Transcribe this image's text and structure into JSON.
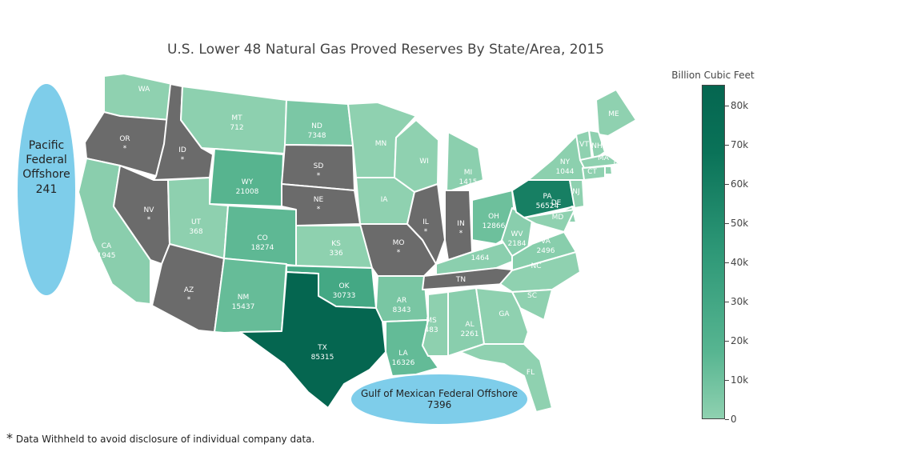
{
  "title": "U.S. Lower 48 Natural Gas Proved Reserves By State/Area, 2015",
  "colorbar": {
    "title": "Billion Cubic Feet",
    "ticks": [
      "0",
      "10k",
      "20k",
      "30k",
      "40k",
      "50k",
      "60k",
      "70k",
      "80k"
    ],
    "range": [
      0,
      85315
    ],
    "colors": [
      "#8fd1b0",
      "#56b48f",
      "#2e9877",
      "#0a7258",
      "#056650"
    ]
  },
  "withheld_color": "#6b6b6b",
  "states": [
    {
      "code": "WA",
      "value": ""
    },
    {
      "code": "OR",
      "value": "*"
    },
    {
      "code": "CA",
      "value": "1945"
    },
    {
      "code": "ID",
      "value": "*"
    },
    {
      "code": "NV",
      "value": "*"
    },
    {
      "code": "MT",
      "value": "712"
    },
    {
      "code": "WY",
      "value": "21008"
    },
    {
      "code": "UT",
      "value": "368"
    },
    {
      "code": "AZ",
      "value": "*"
    },
    {
      "code": "CO",
      "value": "18274"
    },
    {
      "code": "NM",
      "value": "15437"
    },
    {
      "code": "ND",
      "value": "7348"
    },
    {
      "code": "SD",
      "value": "*"
    },
    {
      "code": "NE",
      "value": "*"
    },
    {
      "code": "KS",
      "value": "336"
    },
    {
      "code": "OK",
      "value": "30733"
    },
    {
      "code": "TX",
      "value": "85315"
    },
    {
      "code": "MN",
      "value": ""
    },
    {
      "code": "IA",
      "value": ""
    },
    {
      "code": "MO",
      "value": "*"
    },
    {
      "code": "AR",
      "value": "8343"
    },
    {
      "code": "LA",
      "value": "16326"
    },
    {
      "code": "WI",
      "value": ""
    },
    {
      "code": "IL",
      "value": "*"
    },
    {
      "code": "MS",
      "value": "483"
    },
    {
      "code": "MI",
      "value": "1415"
    },
    {
      "code": "IN",
      "value": "*"
    },
    {
      "code": "KY",
      "value": "1464"
    },
    {
      "code": "TN",
      "value": "*"
    },
    {
      "code": "AL",
      "value": "2261"
    },
    {
      "code": "OH",
      "value": "12866"
    },
    {
      "code": "WV",
      "value": "2184"
    },
    {
      "code": "VA",
      "value": "2496"
    },
    {
      "code": "NC",
      "value": ""
    },
    {
      "code": "SC",
      "value": ""
    },
    {
      "code": "GA",
      "value": ""
    },
    {
      "code": "FL",
      "value": ""
    },
    {
      "code": "PA",
      "value": "56524"
    },
    {
      "code": "NY",
      "value": "1044"
    },
    {
      "code": "ME",
      "value": ""
    },
    {
      "code": "VT",
      "value": ""
    },
    {
      "code": "NH",
      "value": ""
    },
    {
      "code": "MA",
      "value": ""
    },
    {
      "code": "RI",
      "value": ""
    },
    {
      "code": "CT",
      "value": ""
    },
    {
      "code": "NJ",
      "value": ""
    },
    {
      "code": "DE",
      "value": ""
    },
    {
      "code": "MD",
      "value": ""
    }
  ],
  "offshore": [
    {
      "label": "Pacific Federal Offshore",
      "value": "241"
    },
    {
      "label": "Gulf of Mexican Federal Offshore",
      "value": "7396"
    }
  ],
  "bubble_color": "#7ecdea",
  "footnote": {
    "symbol": "*",
    "text": "Data Withheld to avoid disclosure of individual company data."
  }
}
